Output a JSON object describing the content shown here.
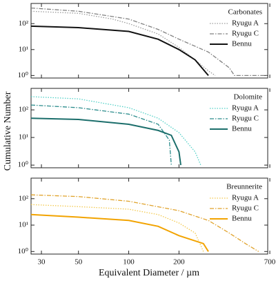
{
  "chart_data": [
    {
      "type": "line",
      "legend_title": "Carbonates",
      "log_x": true,
      "log_y": true,
      "legend": "upper right",
      "xlim": [
        26,
        680
      ],
      "ylim": [
        0.8,
        600
      ],
      "xticks": [
        30,
        50,
        100,
        200,
        700
      ],
      "yticks": [
        {
          "value": 1,
          "label": "10⁰"
        },
        {
          "value": 10,
          "label": "10¹"
        },
        {
          "value": 100,
          "label": "10²"
        }
      ],
      "series": [
        {
          "name": "Ryugu A",
          "color": "#9a9a9a",
          "style": "dotted",
          "x": [
            26,
            50,
            80,
            100,
            150,
            200,
            250,
            300,
            330
          ],
          "values": [
            300,
            250,
            150,
            100,
            40,
            12,
            4,
            1.5,
            1
          ]
        },
        {
          "name": "Ryugu C",
          "color": "#808080",
          "style": "dashdot",
          "x": [
            26,
            50,
            100,
            150,
            200,
            300,
            400,
            430,
            680
          ],
          "values": [
            400,
            300,
            150,
            60,
            25,
            8,
            2,
            1,
            1
          ]
        },
        {
          "name": "Bennu",
          "color": "#111111",
          "style": "solid",
          "x": [
            26,
            50,
            100,
            150,
            200,
            250,
            300
          ],
          "values": [
            80,
            70,
            50,
            25,
            10,
            4,
            1
          ]
        }
      ]
    },
    {
      "type": "line",
      "legend_title": "Dolomite",
      "ylabel": "Cumulative Number",
      "log_x": true,
      "log_y": true,
      "legend": "upper right",
      "xlim": [
        26,
        680
      ],
      "ylim": [
        0.8,
        600
      ],
      "xticks": [
        30,
        50,
        100,
        200,
        700
      ],
      "yticks": [
        {
          "value": 1,
          "label": "10⁰"
        },
        {
          "value": 10,
          "label": "10¹"
        },
        {
          "value": 100,
          "label": "10²"
        }
      ],
      "series": [
        {
          "name": "Ryugu A",
          "color": "#4fd0c6",
          "style": "dotted",
          "x": [
            26,
            50,
            100,
            150,
            200,
            250,
            270
          ],
          "values": [
            300,
            250,
            120,
            50,
            15,
            3,
            1
          ]
        },
        {
          "name": "Ryugu C",
          "color": "#2b8c8c",
          "style": "dashdot",
          "x": [
            26,
            50,
            100,
            150,
            175,
            180
          ],
          "values": [
            150,
            120,
            70,
            30,
            8,
            1
          ]
        },
        {
          "name": "Bennu",
          "color": "#1b6e6b",
          "style": "solid",
          "x": [
            26,
            50,
            100,
            150,
            180,
            200,
            205
          ],
          "values": [
            50,
            45,
            30,
            18,
            12,
            3,
            1
          ]
        }
      ]
    },
    {
      "type": "line",
      "legend_title": "Breunnerite",
      "xlabel": "Equivalent Diameter / µm",
      "log_x": true,
      "log_y": true,
      "legend": "upper right",
      "xlim": [
        26,
        680
      ],
      "ylim": [
        0.8,
        600
      ],
      "xticks": [
        30,
        50,
        100,
        200,
        700
      ],
      "yticks": [
        {
          "value": 1,
          "label": "10⁰"
        },
        {
          "value": 10,
          "label": "10¹"
        },
        {
          "value": 100,
          "label": "10²"
        }
      ],
      "series": [
        {
          "name": "Ryugu A",
          "color": "#f3c84a",
          "style": "dotted",
          "x": [
            26,
            50,
            100,
            150,
            200,
            250,
            280
          ],
          "values": [
            60,
            50,
            40,
            25,
            12,
            5,
            1
          ]
        },
        {
          "name": "Ryugu C",
          "color": "#e0a22a",
          "style": "dashdot",
          "x": [
            26,
            50,
            100,
            200,
            300,
            400,
            500,
            600
          ],
          "values": [
            140,
            120,
            80,
            35,
            15,
            5,
            2,
            1
          ]
        },
        {
          "name": "Bennu",
          "color": "#f2a300",
          "style": "solid",
          "x": [
            26,
            50,
            100,
            150,
            200,
            280,
            300
          ],
          "values": [
            25,
            20,
            15,
            9,
            4,
            2,
            1
          ]
        }
      ]
    }
  ]
}
